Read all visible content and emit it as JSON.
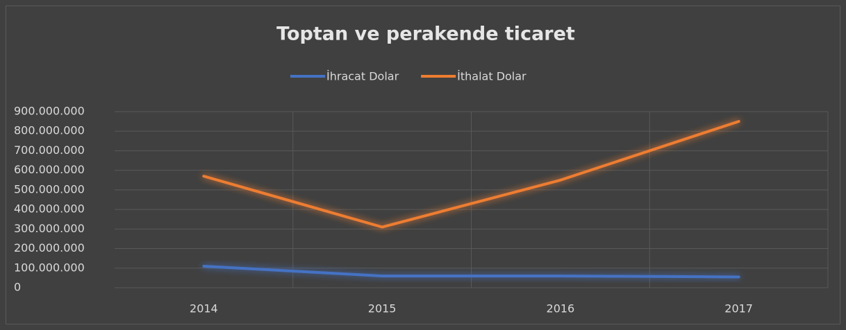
{
  "chart_data": {
    "type": "line",
    "title": "Toptan ve perakende ticaret",
    "categories": [
      "2014",
      "2015",
      "2016",
      "2017"
    ],
    "series": [
      {
        "name": "İhracat Dolar",
        "color": "#4472c4",
        "values": [
          110000000,
          60000000,
          60000000,
          55000000
        ]
      },
      {
        "name": "İthalat Dolar",
        "color": "#ed7d31",
        "values": [
          570000000,
          310000000,
          550000000,
          850000000
        ]
      }
    ],
    "ylim": [
      0,
      900000000
    ],
    "yticks": [
      0,
      {
        "value": 100000000,
        "label": "100.000.000"
      },
      {
        "value": 200000000,
        "label": "200.000.000"
      },
      {
        "value": 300000000,
        "label": "300.000.000"
      },
      {
        "value": 400000000,
        "label": "400.000.000"
      },
      {
        "value": 500000000,
        "label": "500.000.000"
      },
      {
        "value": 600000000,
        "label": "600.000.000"
      },
      {
        "value": 700000000,
        "label": "700.000.000"
      },
      {
        "value": 800000000,
        "label": "800.000.000"
      },
      {
        "value": 900000000,
        "label": "900.000.000"
      }
    ],
    "grid": true,
    "legend": "top"
  }
}
